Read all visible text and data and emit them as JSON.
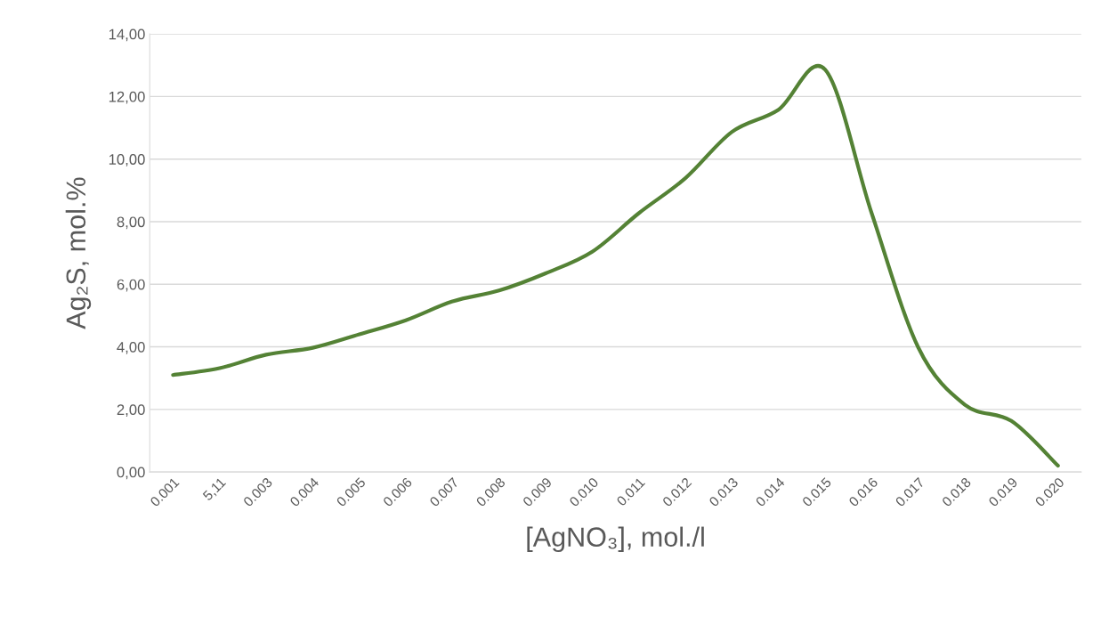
{
  "chart_data": {
    "type": "line",
    "xlabel": "[AgNO₃], mol./l",
    "ylabel": "Ag₂S, mol.%",
    "categories": [
      "0.001",
      "5,11",
      "0.003",
      "0.004",
      "0.005",
      "0.006",
      "0.007",
      "0.008",
      "0.009",
      "0.010",
      "0.011",
      "0.012",
      "0.013",
      "0.014",
      "0.015",
      "0.016",
      "0.017",
      "0.018",
      "0.019",
      "0.020"
    ],
    "series": [
      {
        "color": "#548235",
        "values": [
          3.1,
          3.32,
          3.75,
          3.97,
          4.4,
          4.85,
          5.45,
          5.8,
          6.35,
          7.04,
          8.27,
          9.39,
          10.87,
          11.58,
          12.86,
          8.27,
          3.98,
          2.15,
          1.63,
          0.2
        ]
      }
    ],
    "ylim": [
      0,
      14
    ],
    "yticks": [
      {
        "value": 0,
        "label": "0,00"
      },
      {
        "value": 2,
        "label": "2,00"
      },
      {
        "value": 4,
        "label": "4,00"
      },
      {
        "value": 6,
        "label": "6,00"
      },
      {
        "value": 8,
        "label": "8,00"
      },
      {
        "value": 10,
        "label": "10,00"
      },
      {
        "value": 12,
        "label": "12,00"
      },
      {
        "value": 14,
        "label": "14,00"
      }
    ],
    "grid": "y",
    "marker": "none",
    "line_style": "solid"
  }
}
